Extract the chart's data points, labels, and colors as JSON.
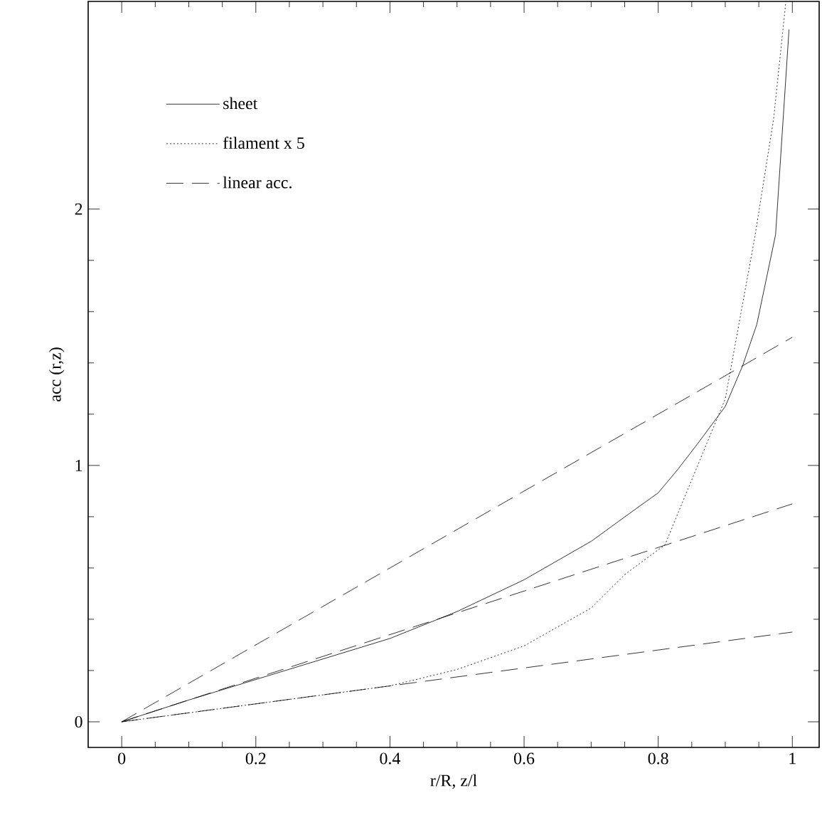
{
  "chart_data": {
    "type": "line",
    "xlabel": "r/R, z/l",
    "ylabel": "acc (r,z)",
    "xlim": [
      -0.05,
      1.04
    ],
    "ylim": [
      -0.1,
      2.81
    ],
    "xticks": [
      0,
      0.2,
      0.4,
      0.6,
      0.8,
      1
    ],
    "yticks": [
      0,
      1,
      2
    ],
    "legend": "top left",
    "grid": false,
    "marker": "none",
    "series": [
      {
        "name": "sheet",
        "color": "#000000",
        "line_style": "solid",
        "x": [
          0,
          0.1,
          0.2,
          0.3,
          0.4,
          0.5,
          0.6,
          0.7,
          0.77,
          0.8,
          0.83,
          0.86,
          0.9,
          0.926,
          0.947,
          0.975,
          0.985,
          0.995
        ],
        "values": [
          0,
          0.085,
          0.165,
          0.245,
          0.325,
          0.43,
          0.554,
          0.704,
          0.837,
          0.893,
          0.987,
          1.089,
          1.23,
          1.39,
          1.55,
          1.9,
          2.3,
          2.7
        ]
      },
      {
        "name": "filament x 5",
        "color": "#000000",
        "line_style": "dotted",
        "x": [
          0,
          0.1,
          0.2,
          0.3,
          0.4,
          0.5,
          0.6,
          0.7,
          0.75,
          0.81,
          0.85,
          0.9,
          0.944,
          0.972,
          0.99
        ],
        "values": [
          0,
          0.035,
          0.07,
          0.105,
          0.14,
          0.204,
          0.296,
          0.444,
          0.574,
          0.69,
          0.944,
          1.26,
          1.89,
          2.35,
          2.8
        ]
      },
      {
        "name": "linear acc.",
        "color": "#000000",
        "line_style": "dashed",
        "x": [
          0,
          1
        ],
        "values": [
          0,
          1.5
        ]
      },
      {
        "color": "#000000",
        "line_style": "dashed",
        "x": [
          0,
          1
        ],
        "values": [
          0,
          0.85
        ]
      },
      {
        "color": "#000000",
        "line_style": "dashed",
        "x": [
          0,
          1
        ],
        "values": [
          0,
          0.35
        ]
      }
    ]
  }
}
